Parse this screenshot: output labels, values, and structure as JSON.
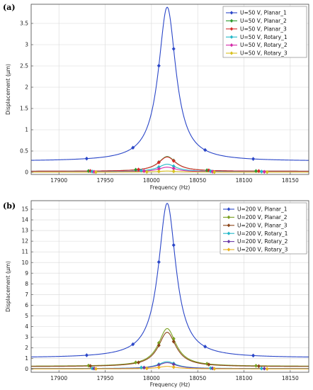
{
  "chart_data": [
    {
      "type": "line",
      "panel_label": "(a)",
      "xlabel": "Frequency (Hz)",
      "ylabel": "Displacement (μm)",
      "xlim": [
        17870,
        18170
      ],
      "ylim": [
        -0.05,
        3.95
      ],
      "xticks": [
        17900,
        17950,
        18000,
        18050,
        18100,
        18150
      ],
      "yticks": [
        0,
        0.5,
        1,
        1.5,
        2,
        2.5,
        3,
        3.5
      ],
      "ytick_labels": [
        "0",
        "0.5",
        "1",
        "1.5",
        "2",
        "2.5",
        "3",
        "3.5"
      ],
      "grid": true,
      "legend_position": "top-right",
      "series": [
        {
          "name": "U=50 V, Planar_1",
          "color": "#2a46c8",
          "marker": "diamond",
          "peak": 3.88,
          "base": 0.26
        },
        {
          "name": "U=50 V, Planar_2",
          "color": "#2e9a2e",
          "marker": "diamond",
          "peak": 0.37,
          "base": 0.025
        },
        {
          "name": "U=50 V, Planar_3",
          "color": "#d62a2a",
          "marker": "diamond",
          "peak": 0.36,
          "base": 0.025
        },
        {
          "name": "U=50 V, Rotary_1",
          "color": "#22b8c8",
          "marker": "diamond",
          "peak": 0.19,
          "base": 0.015
        },
        {
          "name": "U=50 V, Rotary_2",
          "color": "#d42aa8",
          "marker": "diamond",
          "peak": 0.12,
          "base": 0.01
        },
        {
          "name": "U=50 V, Rotary_3",
          "color": "#d8c020",
          "marker": "diamond",
          "peak": 0.03,
          "base": 0.005
        }
      ]
    },
    {
      "type": "line",
      "panel_label": "(b)",
      "xlabel": "Frequency (Hz)",
      "ylabel": "Displacement (μm)",
      "xlim": [
        17870,
        18170
      ],
      "ylim": [
        -0.3,
        15.8
      ],
      "xticks": [
        17900,
        17950,
        18000,
        18050,
        18100,
        18150
      ],
      "yticks": [
        0,
        1,
        2,
        3,
        4,
        5,
        6,
        7,
        8,
        9,
        10,
        11,
        12,
        13,
        14,
        15
      ],
      "ytick_labels": [
        "0",
        "1",
        "2",
        "3",
        "4",
        "5",
        "6",
        "7",
        "8",
        "9",
        "10",
        "11",
        "12",
        "13",
        "14",
        "15"
      ],
      "grid": true,
      "legend_position": "top-right",
      "series": [
        {
          "name": "U=200 V, Planar_1",
          "color": "#2a46c8",
          "marker": "diamond",
          "peak": 15.55,
          "base": 1.05
        },
        {
          "name": "U=200 V, Planar_2",
          "color": "#7aa020",
          "marker": "diamond",
          "peak": 3.8,
          "base": 0.26
        },
        {
          "name": "U=200 V, Planar_3",
          "color": "#8a4418",
          "marker": "diamond",
          "peak": 3.45,
          "base": 0.23
        },
        {
          "name": "U=200 V, Rotary_1",
          "color": "#22b8c8",
          "marker": "diamond",
          "peak": 0.7,
          "base": 0.05
        },
        {
          "name": "U=200 V, Rotary_2",
          "color": "#6a3aa8",
          "marker": "diamond",
          "peak": 0.6,
          "base": 0.04
        },
        {
          "name": "U=200 V, Rotary_3",
          "color": "#e8b020",
          "marker": "diamond",
          "peak": 0.25,
          "base": 0.02
        }
      ]
    }
  ]
}
